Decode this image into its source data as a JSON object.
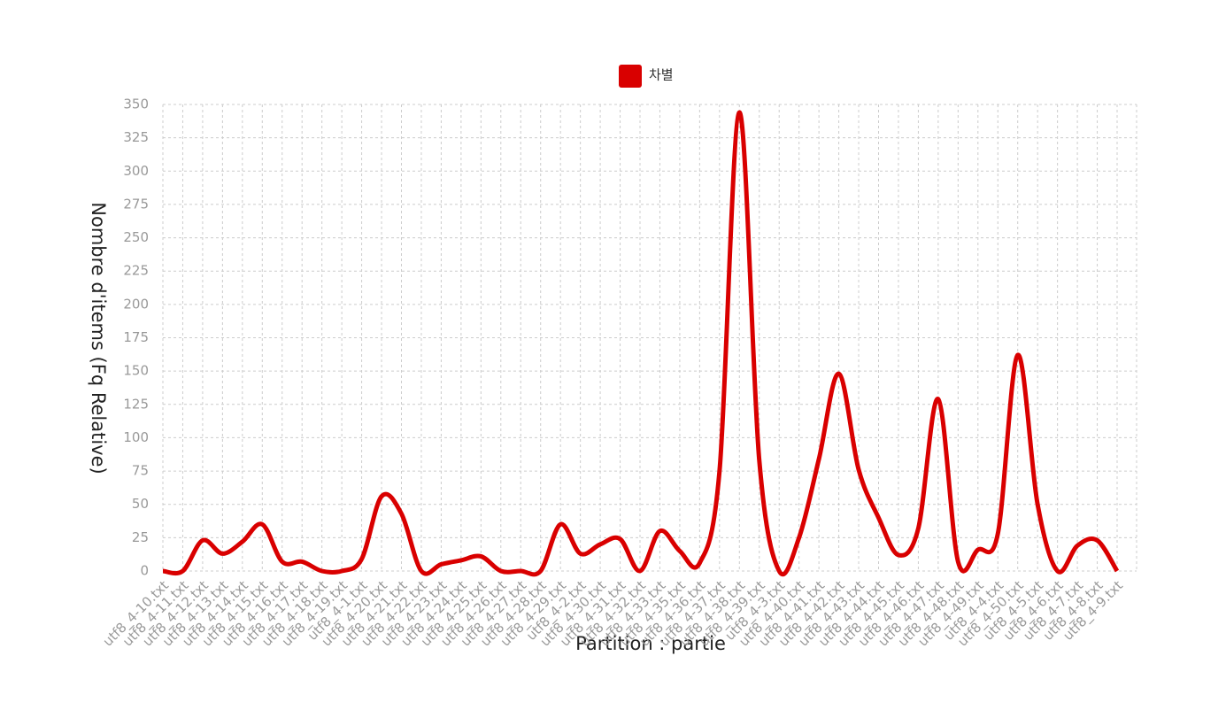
{
  "chart_data": {
    "type": "line",
    "ylabel": "Nombre d'items (Fq Relative)",
    "xlabel": "Partition : partie",
    "categories": [
      "utf8_4-10.txt",
      "utf8_4-11.txt",
      "utf8_4-12.txt",
      "utf8_4-13.txt",
      "utf8_4-14.txt",
      "utf8_4-15.txt",
      "utf8_4-16.txt",
      "utf8_4-17.txt",
      "utf8_4-18.txt",
      "utf8_4-19.txt",
      "utf8_4-1.txt",
      "utf8_4-20.txt",
      "utf8_4-21.txt",
      "utf8_4-22.txt",
      "utf8_4-23.txt",
      "utf8_4-24.txt",
      "utf8_4-25.txt",
      "utf8_4-26.txt",
      "utf8_4-27.txt",
      "utf8_4-28.txt",
      "utf8_4-29.txt",
      "utf8_4-2.txt",
      "utf8_4-30.txt",
      "utf8_4-31.txt",
      "utf8_4-32.txt",
      "utf8_4-33.txt",
      "utf8_4-35.txt",
      "utf8_4-36.txt",
      "utf8_4-37.txt",
      "utf8_4-38.txt",
      "utf8_4-39.txt",
      "utf8_4-3.txt",
      "utf8_4-40.txt",
      "utf8_4-41.txt",
      "utf8_4-42.txt",
      "utf8_4-43.txt",
      "utf8_4-44.txt",
      "utf8_4-45.txt",
      "utf8_4-46.txt",
      "utf8_4-47.txt",
      "utf8_4-48.txt",
      "utf8_4-49.txt",
      "utf8_4-4.txt",
      "utf8_4-50.txt",
      "utf8_4-5.txt",
      "utf8_4-6.txt",
      "utf8_4-7.txt",
      "utf8_4-8.txt",
      "utf8_4-9.txt"
    ],
    "series": [
      {
        "name": "차별",
        "color": "#d90000",
        "values": [
          0,
          0,
          23,
          13,
          22,
          35,
          7,
          7,
          0,
          0,
          9,
          56,
          43,
          0,
          5,
          8,
          11,
          0,
          0,
          0,
          35,
          13,
          20,
          24,
          0,
          30,
          15,
          6,
          75,
          344,
          83,
          0,
          25,
          84,
          148,
          76,
          40,
          12,
          32,
          129,
          7,
          16,
          28,
          162,
          50,
          0,
          19,
          23,
          0
        ]
      }
    ],
    "ylim": [
      0,
      350
    ],
    "yticks": [
      0,
      25,
      50,
      75,
      100,
      125,
      150,
      175,
      200,
      225,
      250,
      275,
      300,
      325,
      350
    ],
    "grid": true,
    "legend": "top"
  }
}
